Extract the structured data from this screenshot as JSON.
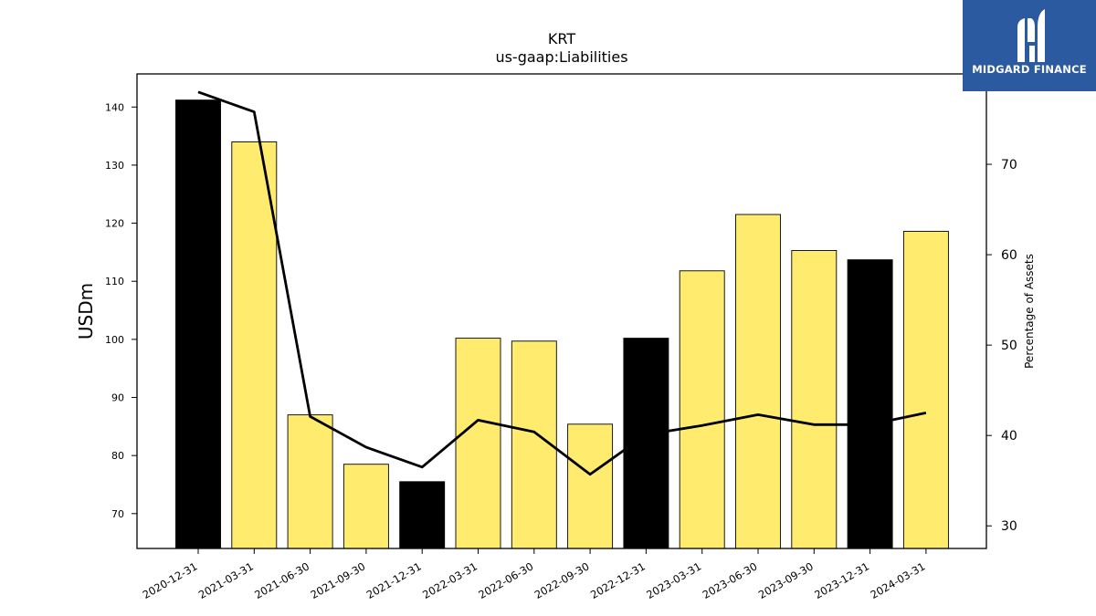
{
  "chart_data": {
    "type": "bar",
    "title": "KRT",
    "subtitle": "us-gaap:Liabilities",
    "ylabel": "USDm",
    "y2label": "Percentage of Assets",
    "categories": [
      "2020-12-31",
      "2021-03-31",
      "2021-06-30",
      "2021-09-30",
      "2021-12-31",
      "2022-03-31",
      "2022-06-30",
      "2022-09-30",
      "2022-12-31",
      "2023-03-31",
      "2023-06-30",
      "2023-09-30",
      "2023-12-31",
      "2024-03-31"
    ],
    "series": [
      {
        "kind": "bar",
        "axis": "left",
        "values": [
          141.2,
          134.0,
          87.0,
          78.5,
          75.5,
          100.2,
          99.7,
          85.4,
          100.2,
          111.8,
          121.5,
          115.3,
          113.7,
          118.6
        ],
        "colors": [
          "#000000",
          "#ffeb6e",
          "#ffeb6e",
          "#ffeb6e",
          "#000000",
          "#ffeb6e",
          "#ffeb6e",
          "#ffeb6e",
          "#000000",
          "#ffeb6e",
          "#ffeb6e",
          "#ffeb6e",
          "#000000",
          "#ffeb6e"
        ]
      },
      {
        "kind": "line",
        "axis": "right",
        "color": "#000000",
        "values": [
          78.0,
          75.8,
          42.1,
          38.7,
          36.5,
          41.7,
          40.4,
          35.7,
          40.1,
          41.1,
          42.3,
          41.2,
          41.2,
          42.5
        ]
      }
    ],
    "ylim": [
      64,
      145.7
    ],
    "yticks": [
      70,
      80,
      90,
      100,
      110,
      120,
      130,
      140
    ],
    "y2lim": [
      27.5,
      80
    ],
    "y2ticks": [
      30,
      40,
      50,
      60,
      70
    ],
    "grid": false
  },
  "logo": {
    "text": "MIDGARD FINANCE",
    "background": "#2c5aa0"
  }
}
